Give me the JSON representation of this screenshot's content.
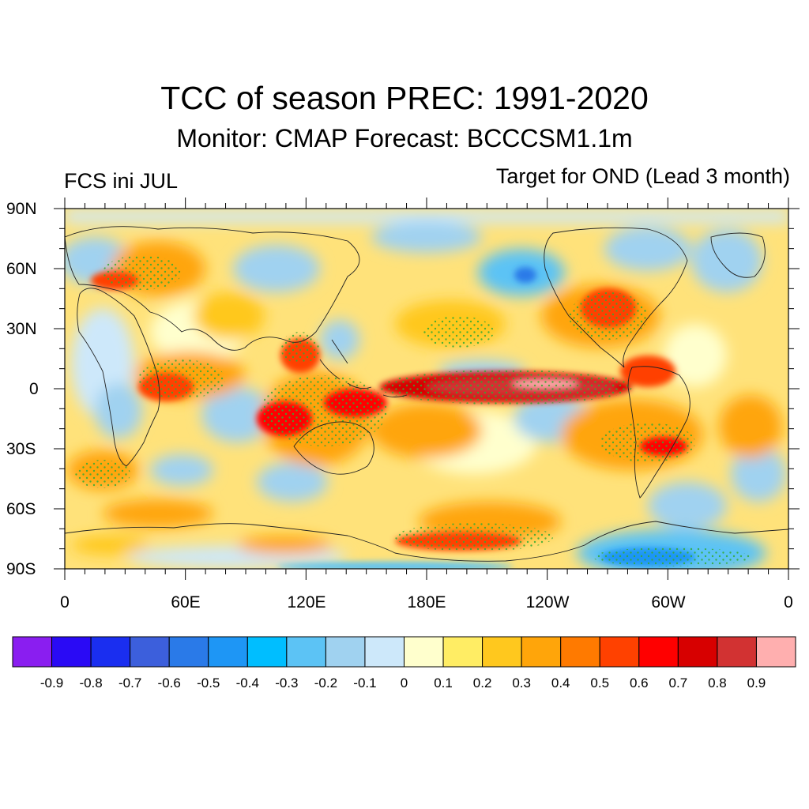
{
  "header": {
    "title": "TCC of season PREC: 1991-2020",
    "subtitle": "Monitor: CMAP   Forecast: BCCCSM1.1m",
    "left_label": "FCS ini JUL",
    "right_label": "Target for OND (Lead 3 month)"
  },
  "map": {
    "projection": "cylindrical-equidistant",
    "lon_range": [
      0,
      360
    ],
    "lat_range": [
      -90,
      90
    ],
    "lat_tick_labels": [
      "90N",
      "60N",
      "30N",
      "0",
      "30S",
      "60S",
      "90S"
    ],
    "lon_tick_labels": [
      "0",
      "60E",
      "120E",
      "180E",
      "120W",
      "60W",
      "0"
    ],
    "stipple_color": "#33aa33",
    "stipple_meaning_visible": false
  },
  "colorbar": {
    "colors": [
      "#8a1ef0",
      "#2a0af5",
      "#1a2ef0",
      "#3c5fdc",
      "#2a7ae8",
      "#1e96f5",
      "#00beff",
      "#5cc3f5",
      "#a0d2f0",
      "#cde8fa",
      "#ffffcd",
      "#ffed64",
      "#ffc81e",
      "#ffa50a",
      "#ff7a00",
      "#ff4100",
      "#ff0000",
      "#d70000",
      "#d23232",
      "#ffafaf"
    ],
    "labels": [
      "-0.9",
      "-0.8",
      "-0.7",
      "-0.6",
      "-0.5",
      "-0.4",
      "-0.3",
      "-0.2",
      "-0.1",
      "0",
      "0.1",
      "0.2",
      "0.3",
      "0.4",
      "0.5",
      "0.6",
      "0.7",
      "0.8",
      "0.9"
    ]
  }
}
